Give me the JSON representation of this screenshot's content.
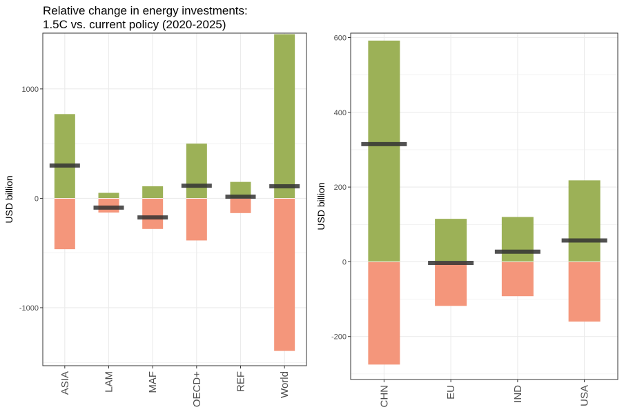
{
  "title": {
    "line1": "Relative change in energy investments:",
    "line2": "1.5C vs. current policy (2020-2025)"
  },
  "colors": {
    "positive": "#9cb157",
    "negative": "#f4967b",
    "net": "#333333",
    "grid": "#ebebeb",
    "border": "#333333"
  },
  "chart_data": [
    {
      "type": "bar",
      "stacked": "diverging",
      "ylabel": "USD billion",
      "ylim": [
        -1530,
        1510
      ],
      "yticks": [
        -1000,
        0,
        1000
      ],
      "ytick_labels": [
        "-1000",
        "0",
        "1000"
      ],
      "grid": true,
      "categories": [
        "ASIA",
        "LAM",
        "MAF",
        "OECD+",
        "REF",
        "World"
      ],
      "positive_values": [
        770,
        50,
        110,
        500,
        150,
        1500
      ],
      "negative_values": [
        -465,
        -130,
        -280,
        -385,
        -135,
        -1395
      ],
      "net_values": [
        300,
        -85,
        -175,
        115,
        15,
        110
      ]
    },
    {
      "type": "bar",
      "stacked": "diverging",
      "ylabel": "USD billion",
      "ylim": [
        -315,
        612
      ],
      "yticks": [
        -200,
        0,
        200,
        400,
        600
      ],
      "ytick_labels": [
        "-200",
        "0",
        "200",
        "400",
        "600"
      ],
      "grid": true,
      "categories": [
        "CHN",
        "EU",
        "IND",
        "USA"
      ],
      "positive_values": [
        592,
        115,
        120,
        218
      ],
      "negative_values": [
        -275,
        -118,
        -92,
        -160
      ],
      "net_values": [
        315,
        -3,
        27,
        57
      ]
    }
  ]
}
